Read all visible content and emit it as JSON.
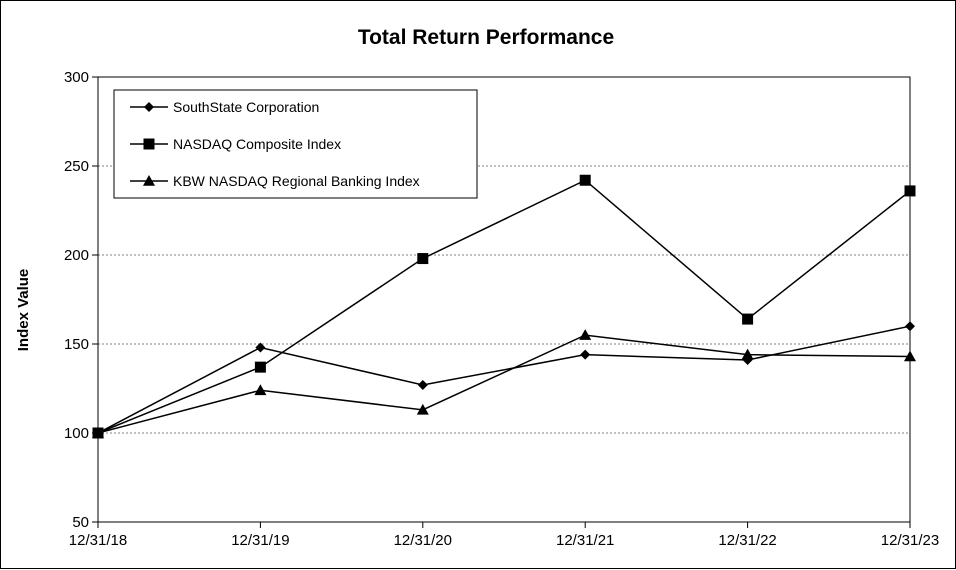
{
  "chart_data": {
    "type": "line",
    "title": "Total Return Performance",
    "xlabel": "",
    "ylabel": "Index Value",
    "categories": [
      "12/31/18",
      "12/31/19",
      "12/31/20",
      "12/31/21",
      "12/31/22",
      "12/31/23"
    ],
    "ylim": [
      50,
      300
    ],
    "yticks": [
      50,
      100,
      150,
      200,
      250,
      300
    ],
    "grid": "horizontal dashed",
    "legend_position": "top-left",
    "series": [
      {
        "name": "SouthState Corporation",
        "marker": "diamond",
        "values": [
          100,
          148,
          127,
          144,
          141,
          160
        ]
      },
      {
        "name": "NASDAQ Composite Index",
        "marker": "square",
        "values": [
          100,
          137,
          198,
          242,
          164,
          236
        ]
      },
      {
        "name": "KBW NASDAQ Regional Banking Index",
        "marker": "triangle",
        "values": [
          100,
          124,
          113,
          155,
          144,
          143
        ]
      }
    ],
    "colors": {
      "line": "#000000",
      "grid": "#808080",
      "background": "#ffffff"
    }
  }
}
